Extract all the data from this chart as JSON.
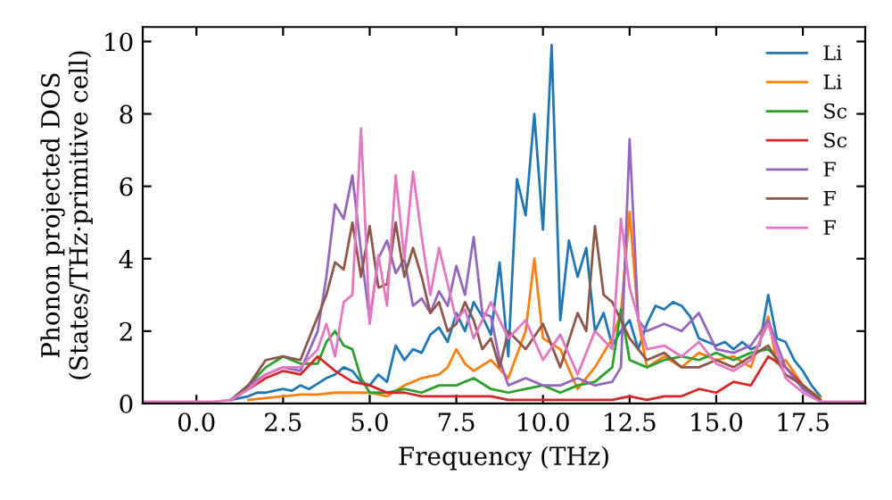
{
  "chart_data": {
    "type": "line",
    "xlabel": "Frequency (THz)",
    "ylabel": "Phonon projected DOS\n(States/THz·primitive cell)",
    "xlim": [
      -1.55,
      19.3
    ],
    "xticks": [
      {
        "value": 0,
        "label": "0.0"
      },
      {
        "value": 2.5,
        "label": "2.5"
      },
      {
        "value": 5,
        "label": "5.0"
      },
      {
        "value": 7.5,
        "label": "7.5"
      },
      {
        "value": 10,
        "label": "10.0"
      },
      {
        "value": 12.5,
        "label": "12.5"
      },
      {
        "value": 15,
        "label": "15.0"
      },
      {
        "value": 17.5,
        "label": "17.5"
      }
    ],
    "ylim": [
      0,
      10.4
    ],
    "yticks": [
      0,
      2,
      4,
      6,
      8,
      10
    ],
    "grid": false,
    "legend": "top right",
    "line_style": "solid",
    "marker": "none",
    "series": [
      {
        "name": "Li",
        "color": "#1f77b4",
        "x": [
          1.0,
          1.25,
          1.5,
          1.75,
          2.0,
          2.25,
          2.5,
          2.75,
          3.0,
          3.25,
          3.5,
          3.75,
          4.0,
          4.25,
          4.5,
          4.75,
          5.0,
          5.25,
          5.5,
          5.75,
          6.0,
          6.25,
          6.5,
          6.75,
          7.0,
          7.25,
          7.5,
          7.75,
          8.0,
          8.25,
          8.5,
          8.75,
          9.0,
          9.25,
          9.5,
          9.75,
          10.0,
          10.25,
          10.5,
          10.75,
          11.0,
          11.25,
          11.5,
          11.75,
          12.0,
          12.25,
          12.5,
          12.75,
          13.0,
          13.25,
          13.5,
          13.75,
          14.0,
          14.25,
          14.5,
          14.75,
          15.0,
          15.25,
          15.5,
          15.75,
          16.0,
          16.25,
          16.5,
          16.75,
          17.0,
          17.25,
          17.5,
          17.75,
          18.0
        ],
        "values": [
          0.1,
          0.15,
          0.2,
          0.3,
          0.3,
          0.35,
          0.4,
          0.35,
          0.5,
          0.4,
          0.55,
          0.7,
          0.8,
          1.0,
          0.9,
          0.6,
          0.5,
          0.8,
          0.6,
          1.6,
          1.2,
          1.5,
          1.4,
          1.9,
          2.1,
          1.7,
          2.5,
          2.0,
          2.8,
          2.4,
          1.9,
          3.9,
          1.3,
          6.2,
          5.2,
          8.0,
          4.8,
          9.9,
          2.3,
          4.5,
          3.5,
          4.3,
          2.0,
          2.5,
          1.6,
          2.0,
          2.3,
          1.5,
          2.2,
          2.7,
          2.6,
          2.8,
          2.7,
          2.4,
          1.8,
          1.7,
          1.6,
          1.7,
          1.5,
          1.7,
          1.5,
          1.6,
          3.0,
          1.8,
          1.7,
          1.2,
          0.9,
          0.5,
          0.2
        ]
      },
      {
        "name": "Li",
        "color": "#ff7f0e",
        "x": [
          1.5,
          2.0,
          2.5,
          3.0,
          3.5,
          4.0,
          4.5,
          5.0,
          5.5,
          6.0,
          6.5,
          7.0,
          7.25,
          7.5,
          7.75,
          8.0,
          8.5,
          9.0,
          9.5,
          9.75,
          10.0,
          10.5,
          11.0,
          11.5,
          12.0,
          12.25,
          12.5,
          12.75,
          13.0,
          13.5,
          14.0,
          14.5,
          15.0,
          15.5,
          16.0,
          16.5,
          16.75,
          17.0,
          17.5,
          18.0
        ],
        "values": [
          0.1,
          0.15,
          0.2,
          0.25,
          0.25,
          0.3,
          0.3,
          0.3,
          0.2,
          0.5,
          0.7,
          0.8,
          1.0,
          1.5,
          1.1,
          0.9,
          1.2,
          0.7,
          2.0,
          4.0,
          1.8,
          1.5,
          0.4,
          1.0,
          1.8,
          2.5,
          5.3,
          2.3,
          1.0,
          1.3,
          1.0,
          1.4,
          1.2,
          1.3,
          1.0,
          2.4,
          1.1,
          1.2,
          0.5,
          0.15
        ]
      },
      {
        "name": "Sc",
        "color": "#2ca02c",
        "x": [
          1.0,
          1.5,
          2.0,
          2.5,
          3.0,
          3.5,
          3.75,
          4.0,
          4.25,
          4.5,
          4.75,
          5.0,
          5.5,
          6.0,
          6.5,
          7.0,
          7.5,
          8.0,
          8.5,
          9.0,
          9.5,
          10.0,
          10.5,
          11.0,
          11.5,
          12.0,
          12.25,
          12.5,
          13.0,
          13.5,
          14.0,
          14.5,
          15.0,
          15.5,
          16.0,
          16.5,
          17.0,
          17.5,
          18.0
        ],
        "values": [
          0.1,
          0.5,
          1.0,
          1.3,
          1.1,
          1.1,
          1.7,
          2.0,
          1.6,
          1.5,
          0.7,
          0.3,
          0.3,
          0.4,
          0.3,
          0.5,
          0.5,
          0.7,
          0.4,
          0.3,
          0.4,
          0.5,
          0.3,
          0.5,
          0.6,
          1.0,
          2.6,
          1.2,
          1.0,
          1.2,
          1.3,
          1.2,
          1.4,
          1.2,
          1.4,
          1.5,
          1.0,
          0.5,
          0.1
        ]
      },
      {
        "name": "Sc",
        "color": "#d62728",
        "x": [
          1.0,
          1.5,
          2.0,
          2.5,
          3.0,
          3.5,
          4.0,
          4.5,
          5.0,
          5.5,
          6.0,
          6.5,
          7.0,
          7.5,
          8.0,
          8.5,
          9.0,
          9.5,
          10.0,
          10.5,
          11.0,
          11.5,
          12.0,
          12.5,
          13.0,
          13.5,
          14.0,
          14.5,
          15.0,
          15.5,
          16.0,
          16.5,
          17.0,
          17.5,
          18.0
        ],
        "values": [
          0.1,
          0.4,
          0.7,
          0.9,
          0.8,
          1.3,
          0.9,
          0.6,
          0.5,
          0.3,
          0.3,
          0.2,
          0.2,
          0.2,
          0.2,
          0.2,
          0.1,
          0.1,
          0.1,
          0.1,
          0.1,
          0.1,
          0.1,
          0.2,
          0.1,
          0.2,
          0.2,
          0.4,
          0.3,
          0.6,
          0.5,
          1.3,
          1.0,
          0.5,
          0.1
        ]
      },
      {
        "name": "F",
        "color": "#9467bd",
        "x": [
          1.0,
          1.5,
          2.0,
          2.5,
          3.0,
          3.5,
          3.75,
          4.0,
          4.25,
          4.5,
          4.75,
          5.0,
          5.25,
          5.5,
          5.75,
          6.0,
          6.25,
          6.5,
          6.75,
          7.0,
          7.25,
          7.5,
          7.75,
          8.0,
          8.25,
          8.5,
          8.75,
          9.0,
          9.5,
          10.0,
          10.5,
          11.0,
          11.5,
          12.0,
          12.25,
          12.5,
          12.75,
          13.0,
          13.5,
          14.0,
          14.5,
          15.0,
          15.5,
          16.0,
          16.5,
          17.0,
          17.5,
          18.0
        ],
        "values": [
          0.1,
          0.5,
          0.8,
          1.0,
          0.9,
          2.0,
          3.5,
          5.5,
          5.1,
          6.3,
          4.2,
          2.3,
          4.0,
          4.5,
          3.6,
          4.0,
          2.7,
          2.9,
          2.5,
          3.1,
          2.7,
          3.8,
          3.0,
          4.6,
          2.5,
          2.4,
          1.2,
          0.5,
          0.7,
          0.5,
          0.5,
          0.7,
          0.5,
          0.6,
          1.0,
          7.3,
          2.3,
          2.0,
          2.2,
          2.0,
          2.5,
          1.5,
          1.4,
          1.6,
          2.3,
          1.0,
          0.4,
          0.1
        ]
      },
      {
        "name": "F",
        "color": "#8c564b",
        "x": [
          1.0,
          1.5,
          2.0,
          2.5,
          3.0,
          3.5,
          3.75,
          4.0,
          4.25,
          4.5,
          4.75,
          5.0,
          5.25,
          5.5,
          5.75,
          6.0,
          6.25,
          6.5,
          6.75,
          7.0,
          7.25,
          7.5,
          7.75,
          8.0,
          8.25,
          8.5,
          8.75,
          9.0,
          9.5,
          10.0,
          10.5,
          11.0,
          11.25,
          11.5,
          11.75,
          12.0,
          12.5,
          13.0,
          13.5,
          14.0,
          14.5,
          15.0,
          15.5,
          16.0,
          16.5,
          17.0,
          17.5,
          18.0
        ],
        "values": [
          0.1,
          0.5,
          1.2,
          1.3,
          1.2,
          2.4,
          3.0,
          3.9,
          3.7,
          5.0,
          3.5,
          4.9,
          3.2,
          3.3,
          5.0,
          3.5,
          4.3,
          3.5,
          2.5,
          2.8,
          2.0,
          2.2,
          2.8,
          2.3,
          1.5,
          1.8,
          1.0,
          2.0,
          1.5,
          2.2,
          1.0,
          2.5,
          2.0,
          4.9,
          3.0,
          2.8,
          1.8,
          1.2,
          1.4,
          1.0,
          1.0,
          1.2,
          1.0,
          1.3,
          1.6,
          0.8,
          0.5,
          0.1
        ]
      },
      {
        "name": "F",
        "color": "#e377c2",
        "x": [
          -1.5,
          0.5,
          1.0,
          1.5,
          2.0,
          2.5,
          3.0,
          3.5,
          3.75,
          4.0,
          4.25,
          4.5,
          4.75,
          5.0,
          5.25,
          5.5,
          5.75,
          6.0,
          6.25,
          6.5,
          6.75,
          7.0,
          7.25,
          7.5,
          7.75,
          8.0,
          8.5,
          9.0,
          9.5,
          10.0,
          10.5,
          11.0,
          11.5,
          12.0,
          12.25,
          12.5,
          13.0,
          13.5,
          14.0,
          14.5,
          15.0,
          15.5,
          16.0,
          16.5,
          17.0,
          17.5,
          18.0,
          18.5,
          19.3
        ],
        "values": [
          0.05,
          0.05,
          0.1,
          0.4,
          0.8,
          1.0,
          1.0,
          1.5,
          2.2,
          1.3,
          2.8,
          3.0,
          7.6,
          2.2,
          4.1,
          2.7,
          6.3,
          4.0,
          6.4,
          4.6,
          3.0,
          4.3,
          3.3,
          2.3,
          2.6,
          1.8,
          2.8,
          1.8,
          2.3,
          1.2,
          1.9,
          0.8,
          2.0,
          1.5,
          5.1,
          3.2,
          1.5,
          1.6,
          1.3,
          1.7,
          1.1,
          0.9,
          1.2,
          2.2,
          0.7,
          0.3,
          0.05,
          0.05,
          0.05
        ]
      }
    ]
  }
}
